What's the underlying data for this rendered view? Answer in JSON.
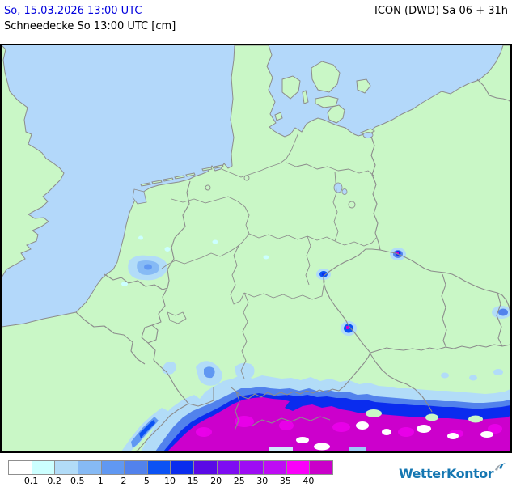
{
  "header": {
    "datetime": "So, 15.03.2026 13:00 UTC",
    "model_run": "ICON (DWD) Sa 06 + 31h",
    "parameter": "Schneedecke So 13:00 UTC [cm]"
  },
  "map": {
    "description": "Snow depth forecast map of Germany and Central Europe",
    "sea_color": "#b3d8fa",
    "land_color": "#c9f7c6",
    "border_color": "#8c8c8c"
  },
  "legend": {
    "unit": "cm",
    "labels": [
      "0.1",
      "0.2",
      "0.5",
      "1",
      "2",
      "5",
      "10",
      "15",
      "20",
      "25",
      "30",
      "35",
      "40"
    ],
    "colors": [
      "#ffffff",
      "#ccffff",
      "#b2dcf8",
      "#86baf5",
      "#6098f2",
      "#5282ec",
      "#0b52f4",
      "#0a2cee",
      "#5a0ae6",
      "#7e0cf2",
      "#9e0cf4",
      "#be0cf4",
      "#fa00fa",
      "#ca00ca"
    ]
  },
  "branding": {
    "name": "WetterKontor",
    "color": "#1577b2"
  }
}
